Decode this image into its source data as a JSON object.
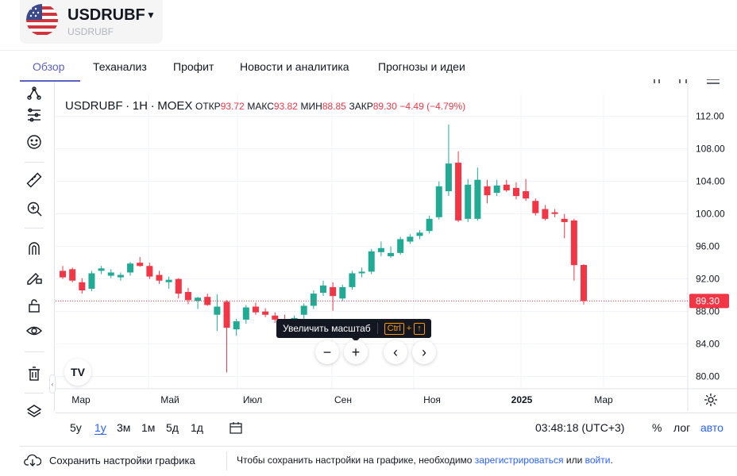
{
  "header": {
    "title": "USDRUBF",
    "subtitle": "USDRUBF"
  },
  "tabs": [
    {
      "label": "Обзор",
      "active": true
    },
    {
      "label": "Теханализ"
    },
    {
      "label": "Профит"
    },
    {
      "label": "Новости и аналитика"
    },
    {
      "label": "Прогнозы и идеи"
    }
  ],
  "legend": {
    "symbol": "USDRUBF",
    "interval": "1H",
    "exchange": "MOEX",
    "open_label": "ОТКР",
    "open": "93.72",
    "high_label": "МАКС",
    "high": "93.82",
    "low_label": "МИН",
    "low": "88.85",
    "close_label": "ЗАКР",
    "close": "89.30",
    "change": "−4.49 (−4.79%)"
  },
  "tooltip": {
    "text": "Увеличить масштаб",
    "key1": "Ctrl",
    "plus": "+",
    "key2": "↑"
  },
  "nav": {
    "zoom_out": "−",
    "zoom_in": "+",
    "left": "‹",
    "right": "›"
  },
  "tv_logo": "TV",
  "ranges": [
    "5y",
    "1y",
    "3м",
    "1м",
    "5д",
    "1д"
  ],
  "active_range": "1y",
  "clock": "03:48:18 (UTC+3)",
  "scale_controls": {
    "percent": "%",
    "log": "лог",
    "auto": "авто"
  },
  "footer": {
    "save_label": "Сохранить настройки графика",
    "text_before": "Чтобы сохранить настройки на графике, необходимо ",
    "register_link": "зарегистрироваться",
    "text_middle": " или ",
    "login_link": "войти",
    "text_after": "."
  },
  "colors": {
    "up": "#22ab94",
    "down": "#f23645",
    "accent": "#5b5fc7",
    "link": "#2962ff"
  },
  "icons": [
    "node-icon",
    "filter-icon",
    "emoji-icon",
    "ruler-icon",
    "zoom-in-icon",
    "magnet-icon",
    "pencil-lock-icon",
    "unlock-icon",
    "eye-icon",
    "trash-icon",
    "layers-icon",
    "calendar-icon",
    "gear-icon",
    "cloud-download-icon"
  ],
  "chart_data": {
    "type": "candlestick",
    "y_ticks": [
      "112.00",
      "108.00",
      "104.00",
      "100.00",
      "96.00",
      "92.00",
      "88.00",
      "84.00",
      "80.00"
    ],
    "ylim": [
      78.5,
      114.8
    ],
    "x_labels": [
      "Мар",
      "Май",
      "Июл",
      "Сен",
      "Ноя",
      "2025",
      "Мар"
    ],
    "last_price": "89.30",
    "last_price_value": 89.3,
    "grid": true,
    "candles": [
      {
        "o": 93.0,
        "h": 93.6,
        "l": 92.0,
        "c": 92.2
      },
      {
        "o": 93.2,
        "h": 93.4,
        "l": 91.6,
        "c": 91.8
      },
      {
        "o": 91.6,
        "h": 92.1,
        "l": 90.2,
        "c": 90.6
      },
      {
        "o": 90.8,
        "h": 93.0,
        "l": 90.5,
        "c": 92.7
      },
      {
        "o": 93.0,
        "h": 93.6,
        "l": 92.6,
        "c": 93.3
      },
      {
        "o": 92.4,
        "h": 93.2,
        "l": 92.1,
        "c": 92.8
      },
      {
        "o": 92.2,
        "h": 92.8,
        "l": 91.8,
        "c": 92.5
      },
      {
        "o": 92.8,
        "h": 94.1,
        "l": 92.4,
        "c": 93.9
      },
      {
        "o": 94.0,
        "h": 94.7,
        "l": 93.5,
        "c": 93.6
      },
      {
        "o": 93.6,
        "h": 94.0,
        "l": 92.0,
        "c": 92.3
      },
      {
        "o": 92.5,
        "h": 93.0,
        "l": 91.4,
        "c": 91.8
      },
      {
        "o": 91.6,
        "h": 92.3,
        "l": 90.8,
        "c": 91.9
      },
      {
        "o": 92.0,
        "h": 92.1,
        "l": 89.6,
        "c": 90.2
      },
      {
        "o": 90.4,
        "h": 90.9,
        "l": 88.9,
        "c": 89.4
      },
      {
        "o": 89.3,
        "h": 89.8,
        "l": 88.3,
        "c": 89.7
      },
      {
        "o": 89.8,
        "h": 90.2,
        "l": 88.7,
        "c": 88.8
      },
      {
        "o": 87.6,
        "h": 90.1,
        "l": 85.6,
        "c": 88.6
      },
      {
        "o": 89.2,
        "h": 89.4,
        "l": 80.5,
        "c": 86.0
      },
      {
        "o": 85.8,
        "h": 87.1,
        "l": 85.0,
        "c": 86.8
      },
      {
        "o": 87.0,
        "h": 88.8,
        "l": 86.5,
        "c": 88.5
      },
      {
        "o": 88.6,
        "h": 89.1,
        "l": 87.6,
        "c": 87.9
      },
      {
        "o": 88.0,
        "h": 88.4,
        "l": 87.3,
        "c": 87.6
      },
      {
        "o": 87.5,
        "h": 87.9,
        "l": 86.6,
        "c": 87.0
      },
      {
        "o": 86.9,
        "h": 87.6,
        "l": 86.2,
        "c": 86.6
      },
      {
        "o": 86.4,
        "h": 87.5,
        "l": 86.0,
        "c": 87.2
      },
      {
        "o": 87.6,
        "h": 89.0,
        "l": 87.1,
        "c": 88.7
      },
      {
        "o": 88.7,
        "h": 90.6,
        "l": 88.3,
        "c": 90.2
      },
      {
        "o": 90.3,
        "h": 91.8,
        "l": 89.9,
        "c": 91.2
      },
      {
        "o": 91.0,
        "h": 91.6,
        "l": 88.1,
        "c": 89.9
      },
      {
        "o": 89.6,
        "h": 91.3,
        "l": 89.3,
        "c": 91.0
      },
      {
        "o": 91.0,
        "h": 93.0,
        "l": 90.7,
        "c": 92.7
      },
      {
        "o": 92.7,
        "h": 93.4,
        "l": 92.2,
        "c": 92.9
      },
      {
        "o": 92.9,
        "h": 95.7,
        "l": 92.6,
        "c": 95.4
      },
      {
        "o": 95.3,
        "h": 96.6,
        "l": 94.8,
        "c": 95.8
      },
      {
        "o": 94.8,
        "h": 96.0,
        "l": 94.6,
        "c": 95.2
      },
      {
        "o": 95.2,
        "h": 97.2,
        "l": 95.0,
        "c": 96.9
      },
      {
        "o": 96.6,
        "h": 97.5,
        "l": 96.3,
        "c": 97.2
      },
      {
        "o": 97.3,
        "h": 98.0,
        "l": 96.9,
        "c": 97.7
      },
      {
        "o": 97.9,
        "h": 99.8,
        "l": 97.6,
        "c": 99.4
      },
      {
        "o": 99.6,
        "h": 104.0,
        "l": 99.3,
        "c": 103.4
      },
      {
        "o": 102.8,
        "h": 111.0,
        "l": 102.2,
        "c": 106.2
      },
      {
        "o": 106.3,
        "h": 107.7,
        "l": 99.0,
        "c": 99.2
      },
      {
        "o": 99.4,
        "h": 104.3,
        "l": 99.0,
        "c": 103.6
      },
      {
        "o": 99.4,
        "h": 105.7,
        "l": 99.2,
        "c": 104.2
      },
      {
        "o": 103.4,
        "h": 104.2,
        "l": 101.3,
        "c": 102.3
      },
      {
        "o": 102.6,
        "h": 104.2,
        "l": 102.2,
        "c": 103.5
      },
      {
        "o": 103.6,
        "h": 104.2,
        "l": 102.7,
        "c": 102.9
      },
      {
        "o": 103.2,
        "h": 103.9,
        "l": 101.8,
        "c": 102.2
      },
      {
        "o": 102.8,
        "h": 104.3,
        "l": 101.6,
        "c": 101.9
      },
      {
        "o": 101.6,
        "h": 101.9,
        "l": 99.8,
        "c": 100.1
      },
      {
        "o": 100.6,
        "h": 101.1,
        "l": 99.2,
        "c": 99.4
      },
      {
        "o": 100.2,
        "h": 100.6,
        "l": 99.6,
        "c": 100.0
      },
      {
        "o": 99.4,
        "h": 100.0,
        "l": 97.0,
        "c": 99.0
      },
      {
        "o": 99.2,
        "h": 99.4,
        "l": 91.8,
        "c": 93.7
      },
      {
        "o": 93.72,
        "h": 93.82,
        "l": 88.85,
        "c": 89.3
      }
    ]
  }
}
